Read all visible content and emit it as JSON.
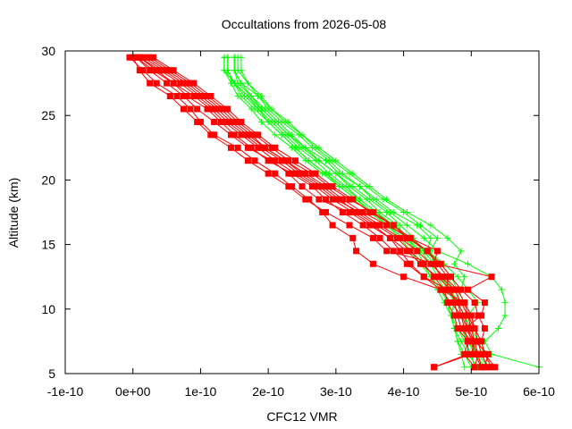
{
  "chart_data": {
    "type": "line",
    "title": "Occultations from 2026-05-08",
    "xlabel": "CFC12 VMR",
    "ylabel": "Altitude (km)",
    "xlim": [
      -1e-10,
      6e-10
    ],
    "ylim": [
      5,
      30
    ],
    "x_ticks": [
      "-1e-10",
      "0e+00",
      "1e-10",
      "2e-10",
      "3e-10",
      "4e-10",
      "5e-10",
      "6e-10"
    ],
    "x_tick_values": [
      -1e-10,
      0,
      1e-10,
      2e-10,
      3e-10,
      4e-10,
      5e-10,
      6e-10
    ],
    "y_ticks": [
      "5",
      "10",
      "15",
      "20",
      "25",
      "30"
    ],
    "y_tick_values": [
      5,
      10,
      15,
      20,
      25,
      30
    ],
    "grid": false,
    "legend": "none",
    "altitudes": [
      5.5,
      6.5,
      7.5,
      8.5,
      9.5,
      10.5,
      11.5,
      12.5,
      13.5,
      14.5,
      15.5,
      16.5,
      17.5,
      18.5,
      19.5,
      20.5,
      21.5,
      22.5,
      23.5,
      24.5,
      25.5,
      26.5,
      27.5,
      28.5,
      29.5
    ],
    "series": [
      {
        "marker": "square",
        "color": "#ff0000",
        "values": [
          4.45e-10,
          5e-10,
          5.05e-10,
          5e-10,
          4.95e-10,
          4.9e-10,
          4.55e-10,
          4e-10,
          3.55e-10,
          3.3e-10,
          3.25e-10,
          2.95e-10,
          2.8e-10,
          2.6e-10,
          2.35e-10,
          2.1e-10,
          1.8e-10,
          1.55e-10,
          1.2e-10,
          1e-10,
          8.5e-11,
          6.5e-11,
          3.5e-11,
          1.5e-11,
          -5e-12
        ]
      },
      {
        "marker": "square",
        "color": "#ff0000",
        "values": [
          5.05e-10,
          5.1e-10,
          5e-10,
          4.95e-10,
          4.9e-10,
          4.8e-10,
          4.65e-10,
          4.3e-10,
          4.05e-10,
          3.85e-10,
          3.65e-10,
          3.4e-10,
          3.1e-10,
          2.85e-10,
          2.65e-10,
          2.35e-10,
          2e-10,
          1.75e-10,
          1.5e-10,
          1.3e-10,
          1.1e-10,
          8e-11,
          6e-11,
          3e-11,
          5e-12
        ]
      },
      {
        "marker": "square",
        "color": "#ff0000",
        "values": [
          5.35e-10,
          5.2e-10,
          5.15e-10,
          5.2e-10,
          5.1e-10,
          5.05e-10,
          4.85e-10,
          4.7e-10,
          4.55e-10,
          4.35e-10,
          4.1e-10,
          3.75e-10,
          3.4e-10,
          3.1e-10,
          2.85e-10,
          2.55e-10,
          2.25e-10,
          1.95e-10,
          1.7e-10,
          1.45e-10,
          1.25e-10,
          1e-10,
          7.5e-11,
          4.5e-11,
          1.5e-11
        ]
      },
      {
        "marker": "square",
        "color": "#ff0000",
        "values": [
          5.15e-10,
          5.05e-10,
          5e-10,
          4.85e-10,
          4.8e-10,
          4.75e-10,
          4.7e-10,
          4.5e-10,
          4.25e-10,
          4.05e-10,
          3.8e-10,
          3.55e-10,
          3.25e-10,
          2.95e-10,
          2.7e-10,
          2.4e-10,
          2.1e-10,
          1.85e-10,
          1.6e-10,
          1.35e-10,
          1.15e-10,
          9e-11,
          6e-11,
          3.5e-11,
          1e-11
        ]
      },
      {
        "marker": "square",
        "color": "#ff0000",
        "values": [
          5.25e-10,
          5.15e-10,
          5.1e-10,
          5.05e-10,
          5e-10,
          4.9e-10,
          4.8e-10,
          4.6e-10,
          4.4e-10,
          4.2e-10,
          3.95e-10,
          3.65e-10,
          3.35e-10,
          3e-10,
          2.75e-10,
          2.45e-10,
          2.2e-10,
          1.9e-10,
          1.65e-10,
          1.4e-10,
          1.2e-10,
          9.5e-11,
          7e-11,
          4e-11,
          1e-11
        ]
      },
      {
        "marker": "square",
        "color": "#ff0000",
        "values": [
          5.05e-10,
          4.9e-10,
          4.95e-10,
          4.8e-10,
          4.75e-10,
          4.65e-10,
          4.6e-10,
          4.45e-10,
          4.3e-10,
          4.1e-10,
          3.9e-10,
          3.6e-10,
          3.3e-10,
          3.05e-10,
          2.8e-10,
          2.5e-10,
          2.25e-10,
          1.95e-10,
          1.75e-10,
          1.5e-10,
          1.3e-10,
          1.05e-10,
          8e-11,
          5e-11,
          2e-11
        ]
      },
      {
        "marker": "square",
        "color": "#ff0000",
        "values": [
          5.2e-10,
          5.25e-10,
          5.05e-10,
          4.9e-10,
          5.15e-10,
          5.2e-10,
          4.95e-10,
          5.3e-10,
          4.5e-10,
          3.75e-10,
          3.55e-10,
          3.2e-10,
          2.85e-10,
          2.55e-10,
          2.3e-10,
          2e-10,
          1.7e-10,
          1.45e-10,
          1.15e-10,
          9.5e-11,
          7.5e-11,
          5.5e-11,
          2.5e-11,
          1e-11,
          0.0
        ]
      },
      {
        "marker": "square",
        "color": "#ff0000",
        "values": [
          5.3e-10,
          5.2e-10,
          5.15e-10,
          5.05e-10,
          4.95e-10,
          4.85e-10,
          4.75e-10,
          4.55e-10,
          4.45e-10,
          4.5e-10,
          4.1e-10,
          3.85e-10,
          3.55e-10,
          3.2e-10,
          2.9e-10,
          2.65e-10,
          2.3e-10,
          2.05e-10,
          1.8e-10,
          1.55e-10,
          1.35e-10,
          1.1e-10,
          8.5e-11,
          5.5e-11,
          2.5e-11
        ]
      },
      {
        "marker": "square",
        "color": "#ff0000",
        "values": [
          4.45e-10,
          4.95e-10,
          4.95e-10,
          4.9e-10,
          4.85e-10,
          4.7e-10,
          4.55e-10,
          4.3e-10,
          4.1e-10,
          3.95e-10,
          3.8e-10,
          3.5e-10,
          3.2e-10,
          2.75e-10,
          2.5e-10,
          2.3e-10,
          2.05e-10,
          1.7e-10,
          1.45e-10,
          1.2e-10,
          9.5e-11,
          7.5e-11,
          5e-11,
          2.5e-11,
          5e-12
        ]
      },
      {
        "marker": "square",
        "color": "#ff0000",
        "values": [
          5.15e-10,
          5.1e-10,
          5.05e-10,
          4.95e-10,
          4.85e-10,
          4.8e-10,
          4.65e-10,
          4.65e-10,
          4.5e-10,
          4.35e-10,
          4.05e-10,
          3.85e-10,
          3.5e-10,
          3.25e-10,
          2.95e-10,
          2.7e-10,
          2.4e-10,
          2.1e-10,
          1.85e-10,
          1.6e-10,
          1.4e-10,
          1.15e-10,
          9e-11,
          6e-11,
          3e-11
        ]
      },
      {
        "marker": "plus",
        "color": "#00ff00",
        "values": [
          6e-10,
          5.3e-10,
          5.2e-10,
          5.4e-10,
          5.5e-10,
          5.5e-10,
          5.45e-10,
          5.3e-10,
          4.95e-10,
          4.5e-10,
          4.3e-10,
          4.05e-10,
          3.8e-10,
          3.55e-10,
          3.35e-10,
          3.05e-10,
          2.85e-10,
          2.55e-10,
          2.3e-10,
          2.1e-10,
          1.9e-10,
          1.7e-10,
          1.5e-10,
          1.35e-10,
          1.35e-10
        ]
      },
      {
        "marker": "plus",
        "color": "#00ff00",
        "values": [
          5.15e-10,
          5.05e-10,
          5.05e-10,
          5e-10,
          4.95e-10,
          4.85e-10,
          4.75e-10,
          4.6e-10,
          4.4e-10,
          4.2e-10,
          4e-10,
          3.75e-10,
          3.55e-10,
          3.3e-10,
          3.05e-10,
          2.8e-10,
          2.55e-10,
          2.35e-10,
          2.1e-10,
          1.9e-10,
          1.75e-10,
          1.55e-10,
          1.45e-10,
          1.35e-10,
          1.35e-10
        ]
      },
      {
        "marker": "plus",
        "color": "#00ff00",
        "values": [
          5.25e-10,
          5.15e-10,
          5.1e-10,
          5.05e-10,
          5e-10,
          4.9e-10,
          4.8e-10,
          4.7e-10,
          4.55e-10,
          4.3e-10,
          4.1e-10,
          3.85e-10,
          3.6e-10,
          3.35e-10,
          3.1e-10,
          2.85e-10,
          2.6e-10,
          2.4e-10,
          2.2e-10,
          2e-10,
          1.8e-10,
          1.6e-10,
          1.5e-10,
          1.4e-10,
          1.4e-10
        ]
      },
      {
        "marker": "plus",
        "color": "#00ff00",
        "values": [
          5.25e-10,
          5.1e-10,
          4.95e-10,
          4.85e-10,
          4.95e-10,
          5.1e-10,
          4.95e-10,
          4.8e-10,
          4.6e-10,
          4.35e-10,
          4.4e-10,
          4.2e-10,
          3.85e-10,
          3.6e-10,
          3.35e-10,
          3.1e-10,
          2.9e-10,
          2.65e-10,
          2.45e-10,
          2.2e-10,
          2e-10,
          1.85e-10,
          1.7e-10,
          1.6e-10,
          1.6e-10
        ]
      },
      {
        "marker": "plus",
        "color": "#00ff00",
        "values": [
          5.2e-10,
          5.05e-10,
          4.95e-10,
          4.85e-10,
          4.8e-10,
          4.75e-10,
          4.65e-10,
          4.55e-10,
          4.45e-10,
          4.4e-10,
          4.5e-10,
          4.25e-10,
          4e-10,
          3.7e-10,
          3.45e-10,
          3.2e-10,
          2.95e-10,
          2.7e-10,
          2.5e-10,
          2.25e-10,
          2.05e-10,
          1.85e-10,
          1.6e-10,
          1.5e-10,
          1.5e-10
        ]
      },
      {
        "marker": "plus",
        "color": "#00ff00",
        "values": [
          5e-10,
          4.9e-10,
          4.8e-10,
          4.75e-10,
          4.7e-10,
          4.75e-10,
          4.85e-10,
          4.9e-10,
          4.75e-10,
          4.85e-10,
          4.65e-10,
          4.4e-10,
          4.05e-10,
          3.75e-10,
          3.5e-10,
          3.25e-10,
          3e-10,
          2.75e-10,
          2.5e-10,
          2.3e-10,
          2.05e-10,
          1.9e-10,
          1.7e-10,
          1.55e-10,
          1.55e-10
        ]
      },
      {
        "marker": "plus",
        "color": "#00ff00",
        "values": [
          5.05e-10,
          5e-10,
          4.9e-10,
          4.8e-10,
          4.7e-10,
          4.65e-10,
          4.6e-10,
          4.5e-10,
          4.4e-10,
          4.25e-10,
          4.05e-10,
          3.9e-10,
          3.65e-10,
          3.45e-10,
          3.2e-10,
          3e-10,
          2.75e-10,
          2.5e-10,
          2.3e-10,
          2.1e-10,
          1.9e-10,
          1.75e-10,
          1.55e-10,
          1.5e-10,
          1.5e-10
        ]
      },
      {
        "marker": "plus",
        "color": "#00ff00",
        "values": [
          5.1e-10,
          4.95e-10,
          4.85e-10,
          4.75e-10,
          4.7e-10,
          4.6e-10,
          4.5e-10,
          4.4e-10,
          4.3e-10,
          4.2e-10,
          4.05e-10,
          3.8e-10,
          3.6e-10,
          3.35e-10,
          3.15e-10,
          2.9e-10,
          2.7e-10,
          2.45e-10,
          2.25e-10,
          2.05e-10,
          1.85e-10,
          1.7e-10,
          1.5e-10,
          1.4e-10,
          1.4e-10
        ]
      },
      {
        "marker": "plus",
        "color": "#00ff00",
        "values": [
          5.3e-10,
          5.2e-10,
          5.1e-10,
          5e-10,
          4.9e-10,
          4.8e-10,
          4.7e-10,
          4.55e-10,
          4.45e-10,
          4.3e-10,
          4.15e-10,
          3.95e-10,
          3.75e-10,
          3.5e-10,
          3.25e-10,
          3e-10,
          2.75e-10,
          2.55e-10,
          2.35e-10,
          2.15e-10,
          1.95e-10,
          1.75e-10,
          1.6e-10,
          1.5e-10,
          1.5e-10
        ]
      },
      {
        "marker": "plus",
        "color": "#00ff00",
        "values": [
          4.9e-10,
          4.85e-10,
          4.8e-10,
          4.75e-10,
          4.7e-10,
          4.65e-10,
          4.55e-10,
          4.4e-10,
          4.25e-10,
          4.1e-10,
          3.95e-10,
          3.75e-10,
          3.5e-10,
          3.3e-10,
          3.05e-10,
          2.85e-10,
          2.6e-10,
          2.4e-10,
          2.2e-10,
          2e-10,
          1.85e-10,
          1.65e-10,
          1.5e-10,
          1.35e-10,
          1.35e-10
        ]
      }
    ]
  }
}
